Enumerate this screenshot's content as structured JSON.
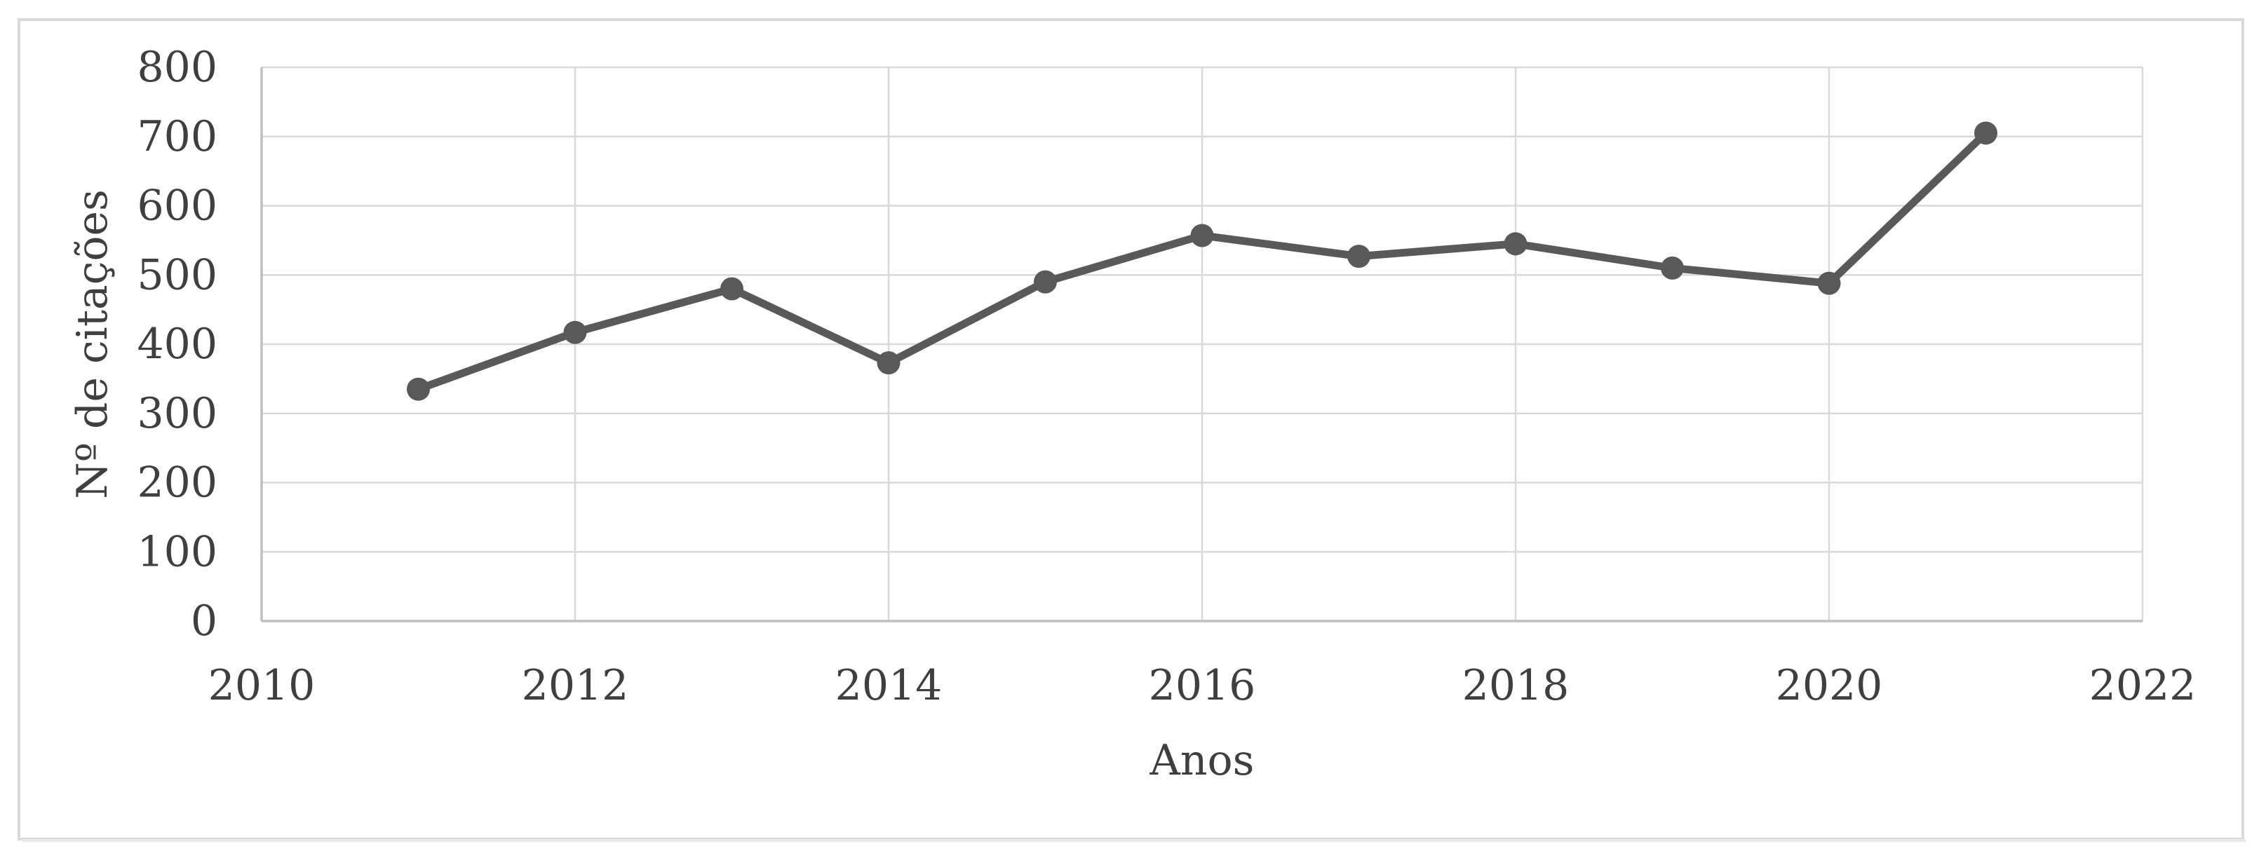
{
  "figure": {
    "background_color": "#ffffff",
    "frame_border_color": "#d9d9d9",
    "frame_shadow_color": "#e9e9e9"
  },
  "chart_data": {
    "type": "line",
    "title": "",
    "xlabel": "Anos",
    "ylabel": "Nº de citações",
    "x": [
      2011,
      2012,
      2013,
      2014,
      2015,
      2016,
      2017,
      2018,
      2019,
      2020,
      2021
    ],
    "values": [
      335,
      417,
      480,
      373,
      490,
      557,
      527,
      545,
      510,
      488,
      705
    ],
    "xlim": [
      2010,
      2022
    ],
    "ylim": [
      0,
      800
    ],
    "x_ticks": [
      2010,
      2012,
      2014,
      2016,
      2018,
      2020,
      2022
    ],
    "y_ticks": [
      0,
      100,
      200,
      300,
      400,
      500,
      600,
      700,
      800
    ],
    "grid": true,
    "legend": false,
    "line_color": "#595959",
    "marker_color": "#595959",
    "gridline_color": "#d9d9d9",
    "axis_line_color": "#bfbfbf",
    "tick_label_color": "#3f3f3f",
    "axis_title_color": "#3f3f3f"
  }
}
